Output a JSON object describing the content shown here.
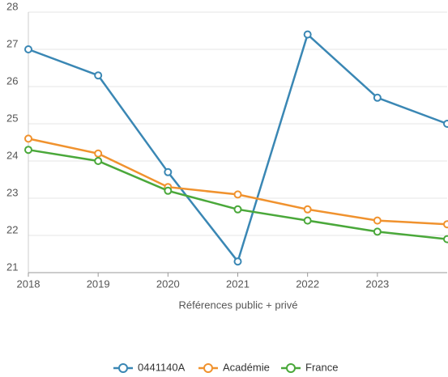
{
  "chart_data": {
    "type": "line",
    "x_label": "Références public + privé",
    "x": [
      2018,
      2019,
      2020,
      2021,
      2022,
      2023,
      2024
    ],
    "xlim": [
      2018,
      2024
    ],
    "xticks": [
      2018,
      2019,
      2020,
      2021,
      2022,
      2023
    ],
    "ylim": [
      21,
      28
    ],
    "yticks": [
      21,
      22,
      23,
      24,
      25,
      26,
      27,
      28
    ],
    "grid": true,
    "legend": "bottom",
    "series": [
      {
        "name": "0441140A",
        "color": "#3a87b4",
        "values": [
          27.0,
          26.3,
          23.7,
          21.3,
          27.4,
          25.7,
          25.0
        ]
      },
      {
        "name": "Académie",
        "color": "#f0922e",
        "values": [
          24.6,
          24.2,
          23.3,
          23.1,
          22.7,
          22.4,
          22.3
        ]
      },
      {
        "name": "France",
        "color": "#4aa83a",
        "values": [
          24.3,
          24.0,
          23.2,
          22.7,
          22.4,
          22.1,
          21.9
        ]
      }
    ]
  }
}
